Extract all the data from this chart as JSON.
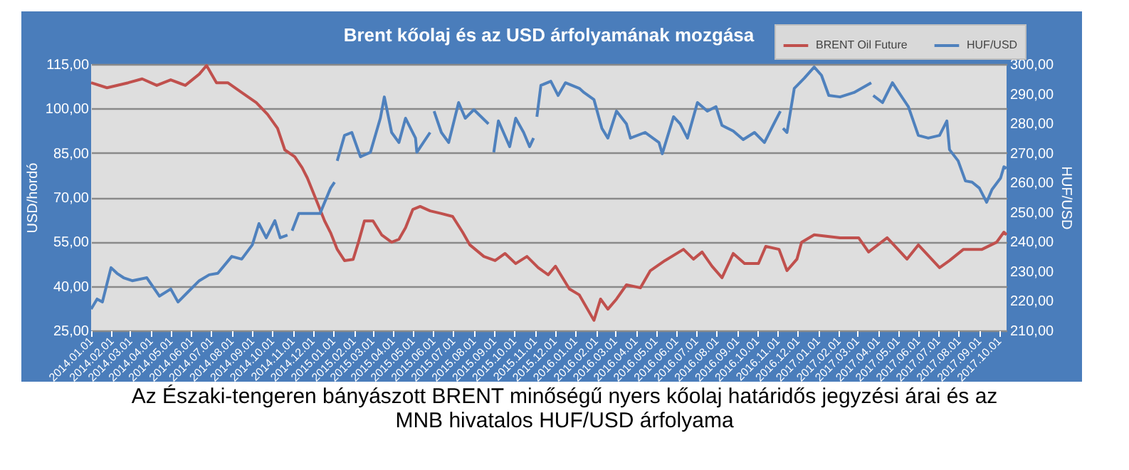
{
  "chart_data": {
    "type": "line",
    "title": "Brent kőolaj és az USD árfolyamának mozgása",
    "ylabel": "USD/hordó",
    "y2label": "HUF/USD",
    "annotations": [
      "Az Északi-tengeren bányászott BRENT minőségű nyers kőolaj határidős jegyzési árai és az MNB hivatalos HUF/USD árfolyama"
    ],
    "legend": "top right",
    "grid": "y",
    "xlim": [
      "2014-01-01",
      "2017-10-12"
    ],
    "xticks": [
      {
        "value": "2014-01-01",
        "label": "2014.01.01"
      },
      {
        "value": "2014-02-01",
        "label": "2014.02.01"
      },
      {
        "value": "2014-03-01",
        "label": "2014.03.01"
      },
      {
        "value": "2014-04-01",
        "label": "2014.04.01"
      },
      {
        "value": "2014-05-01",
        "label": "2014.05.01"
      },
      {
        "value": "2014-06-01",
        "label": "2014.06.01"
      },
      {
        "value": "2014-07-01",
        "label": "2014.07.01"
      },
      {
        "value": "2014-08-01",
        "label": "2014.08.01"
      },
      {
        "value": "2014-09-01",
        "label": "2014.09.01"
      },
      {
        "value": "2014-10-01",
        "label": "2014.10.01"
      },
      {
        "value": "2014-11-01",
        "label": "2014.11.01"
      },
      {
        "value": "2014-12-01",
        "label": "2014.12.01"
      },
      {
        "value": "2015-01-01",
        "label": "2015.01.01"
      },
      {
        "value": "2015-02-01",
        "label": "2015.02.01"
      },
      {
        "value": "2015-03-01",
        "label": "2015.03.01"
      },
      {
        "value": "2015-04-01",
        "label": "2015.04.01"
      },
      {
        "value": "2015-05-01",
        "label": "2015.05.01"
      },
      {
        "value": "2015-06-01",
        "label": "2015.06.01"
      },
      {
        "value": "2015-07-01",
        "label": "2015.07.01"
      },
      {
        "value": "2015-08-01",
        "label": "2015.08.01"
      },
      {
        "value": "2015-09-01",
        "label": "2015.09.01"
      },
      {
        "value": "2015-10-01",
        "label": "2015.10.01"
      },
      {
        "value": "2015-11-01",
        "label": "2015.11.01"
      },
      {
        "value": "2015-12-01",
        "label": "2015.12.01"
      },
      {
        "value": "2016-01-01",
        "label": "2016.01.01"
      },
      {
        "value": "2016-02-01",
        "label": "2016.02.01"
      },
      {
        "value": "2016-03-01",
        "label": "2016.03.01"
      },
      {
        "value": "2016-04-01",
        "label": "2016.04.01"
      },
      {
        "value": "2016-05-01",
        "label": "2016.05.01"
      },
      {
        "value": "2016-06-01",
        "label": "2016.06.01"
      },
      {
        "value": "2016-07-01",
        "label": "2016.07.01"
      },
      {
        "value": "2016-08-01",
        "label": "2016.08.01"
      },
      {
        "value": "2016-09-01",
        "label": "2016.09.01"
      },
      {
        "value": "2016-10-01",
        "label": "2016.10.01"
      },
      {
        "value": "2016-11-01",
        "label": "2016.11.01"
      },
      {
        "value": "2016-12-01",
        "label": "2016.12.01"
      },
      {
        "value": "2017-01-01",
        "label": "2017.01.01"
      },
      {
        "value": "2017-02-01",
        "label": "2017.02.01"
      },
      {
        "value": "2017-03-01",
        "label": "2017.03.01"
      },
      {
        "value": "2017-04-01",
        "label": "2017.04.01"
      },
      {
        "value": "2017-05-01",
        "label": "2017.05.01"
      },
      {
        "value": "2017-06-01",
        "label": "2017.06.01"
      },
      {
        "value": "2017-07-01",
        "label": "2017.07.01"
      },
      {
        "value": "2017-08-01",
        "label": "2017.08.01"
      },
      {
        "value": "2017-09-01",
        "label": "2017.09.01"
      },
      {
        "value": "2017-10-01",
        "label": "2017.10.01"
      }
    ],
    "ylim": [
      25,
      115
    ],
    "yticks": [
      {
        "value": 25,
        "label": "25,00"
      },
      {
        "value": 40,
        "label": "40,00"
      },
      {
        "value": 55,
        "label": "55,00"
      },
      {
        "value": 70,
        "label": "70,00"
      },
      {
        "value": 85,
        "label": "85,00"
      },
      {
        "value": 100,
        "label": "100,00"
      },
      {
        "value": 115,
        "label": "115,00"
      }
    ],
    "y2lim": [
      210,
      300
    ],
    "y2ticks": [
      {
        "value": 210,
        "label": "210,00"
      },
      {
        "value": 220,
        "label": "220,00"
      },
      {
        "value": 230,
        "label": "230,00"
      },
      {
        "value": 240,
        "label": "240,00"
      },
      {
        "value": 250,
        "label": "250,00"
      },
      {
        "value": 260,
        "label": "260,00"
      },
      {
        "value": 270,
        "label": "270,00"
      },
      {
        "value": 280,
        "label": "280,00"
      },
      {
        "value": 290,
        "label": "290,00"
      },
      {
        "value": 300,
        "label": "300,00"
      }
    ],
    "series": [
      {
        "name": "BRENT Oil Future",
        "color": "#c0504d",
        "x": [
          "2014-01-01",
          "2014-01-25",
          "2014-02-26",
          "2014-03-19",
          "2014-04-10",
          "2014-05-01",
          "2014-05-23",
          "2014-06-13",
          "2014-06-24",
          "2014-07-09",
          "2014-07-26",
          "2014-08-16",
          "2014-09-07",
          "2014-09-24",
          "2014-10-09",
          "2014-10-20",
          "2014-11-04",
          "2014-11-15",
          "2014-11-23",
          "2014-12-06",
          "2014-12-19",
          "2014-12-28",
          "2015-01-07",
          "2015-01-18",
          "2015-01-31",
          "2015-02-08",
          "2015-02-17",
          "2015-03-02",
          "2015-03-15",
          "2015-03-30",
          "2015-04-10",
          "2015-04-20",
          "2015-05-01",
          "2015-05-12",
          "2015-05-27",
          "2015-06-13",
          "2015-06-30",
          "2015-07-15",
          "2015-07-26",
          "2015-08-16",
          "2015-09-02",
          "2015-09-17",
          "2015-10-03",
          "2015-10-20",
          "2015-11-06",
          "2015-11-21",
          "2015-12-02",
          "2015-12-23",
          "2016-01-07",
          "2016-01-29",
          "2016-02-08",
          "2016-02-19",
          "2016-03-03",
          "2016-03-18",
          "2016-04-08",
          "2016-04-23",
          "2016-05-15",
          "2016-06-12",
          "2016-06-27",
          "2016-07-10",
          "2016-07-25",
          "2016-08-09",
          "2016-08-26",
          "2016-09-12",
          "2016-10-03",
          "2016-10-14",
          "2016-11-03",
          "2016-11-15",
          "2016-11-30",
          "2016-12-07",
          "2016-12-26",
          "2017-02-03",
          "2017-03-03",
          "2017-03-18",
          "2017-04-15",
          "2017-05-15",
          "2017-06-01",
          "2017-07-03",
          "2017-07-18",
          "2017-08-08",
          "2017-09-05",
          "2017-09-27",
          "2017-10-08",
          "2017-10-12"
        ],
        "values": [
          108.7,
          107.0,
          108.7,
          110.0,
          107.8,
          109.7,
          107.8,
          111.6,
          114.5,
          108.7,
          108.7,
          105.4,
          102.0,
          98.0,
          93.3,
          86.0,
          83.7,
          80.0,
          76.5,
          69.3,
          62.0,
          58.0,
          52.4,
          48.6,
          49.0,
          54.8,
          62.0,
          62.0,
          57.3,
          54.8,
          55.8,
          59.7,
          65.9,
          66.9,
          65.4,
          64.5,
          63.5,
          58.2,
          53.9,
          50.0,
          48.6,
          51.0,
          47.6,
          50.0,
          46.2,
          43.8,
          46.7,
          39.0,
          37.0,
          28.4,
          35.6,
          32.2,
          35.6,
          40.4,
          39.4,
          45.2,
          48.6,
          52.4,
          49.1,
          51.5,
          46.7,
          42.8,
          51.0,
          47.6,
          47.6,
          53.4,
          52.4,
          45.2,
          49.1,
          54.8,
          57.3,
          56.3,
          56.3,
          51.5,
          56.3,
          49.1,
          53.9,
          46.2,
          48.6,
          52.4,
          52.4,
          54.8,
          58.2,
          57.3
        ]
      },
      {
        "name": "HUF/USD",
        "color": "#4f81bd",
        "axis": "y2",
        "x": [
          "2014-01-01",
          "2014-01-10",
          "2014-01-18",
          "2014-01-31",
          "2014-02-09",
          "2014-02-19",
          "2014-03-04",
          "2014-03-26",
          "2014-04-14",
          "2014-05-01",
          "2014-05-12",
          "2014-05-27",
          "2014-06-13",
          "2014-06-28",
          "2014-07-11",
          "2014-08-01",
          "2014-08-16",
          "2014-09-01",
          "2014-09-11",
          "2014-09-22",
          "2014-10-05",
          "2014-10-13",
          "2014-10-24",
          "2014-10-27",
          "2014-10-31",
          "2014-11-10",
          "2014-11-24",
          "2014-12-12",
          "2014-12-28",
          "2015-01-03",
          "2015-01-05",
          "2015-01-07",
          "2015-01-18",
          "2015-01-29",
          "2015-02-11",
          "2015-02-26",
          "2015-03-13",
          "2015-03-19",
          "2015-03-30",
          "2015-04-10",
          "2015-04-20",
          "2015-05-05",
          "2015-05-07",
          "2015-05-27",
          "2015-05-29",
          "2015-06-02",
          "2015-06-13",
          "2015-06-24",
          "2015-07-09",
          "2015-07-19",
          "2015-08-01",
          "2015-08-23",
          "2015-08-25",
          "2015-08-31",
          "2015-09-07",
          "2015-09-24",
          "2015-10-03",
          "2015-10-15",
          "2015-10-24",
          "2015-10-30",
          "2015-11-01",
          "2015-11-04",
          "2015-11-10",
          "2015-11-25",
          "2015-12-06",
          "2015-12-17",
          "2016-01-07",
          "2016-01-14",
          "2016-01-29",
          "2016-02-10",
          "2016-02-19",
          "2016-03-03",
          "2016-03-18",
          "2016-03-24",
          "2016-04-15",
          "2016-05-06",
          "2016-05-11",
          "2016-05-28",
          "2016-06-07",
          "2016-06-18",
          "2016-07-03",
          "2016-07-18",
          "2016-07-31",
          "2016-08-09",
          "2016-08-26",
          "2016-09-10",
          "2016-09-27",
          "2016-10-12",
          "2016-10-25",
          "2016-11-05",
          "2016-11-06",
          "2016-11-09",
          "2016-11-15",
          "2016-11-26",
          "2016-12-11",
          "2016-12-26",
          "2017-01-06",
          "2017-01-17",
          "2017-02-03",
          "2017-02-24",
          "2017-03-22",
          "2017-03-23",
          "2017-03-25",
          "2017-04-08",
          "2017-04-23",
          "2017-04-30",
          "2017-05-17",
          "2017-06-01",
          "2017-06-16",
          "2017-07-03",
          "2017-07-14",
          "2017-07-18",
          "2017-07-31",
          "2017-08-11",
          "2017-08-21",
          "2017-09-01",
          "2017-09-12",
          "2017-09-20",
          "2017-10-03",
          "2017-10-08",
          "2017-10-12"
        ],
        "values": [
          217.2,
          220.6,
          219.6,
          231.2,
          229.3,
          227.8,
          226.8,
          227.8,
          221.6,
          224.0,
          219.6,
          223.0,
          226.8,
          228.8,
          229.3,
          235.0,
          234.1,
          238.9,
          246.1,
          241.3,
          247.1,
          241.3,
          242.2,
          null,
          243.7,
          249.5,
          249.5,
          249.5,
          258.1,
          260.1,
          null,
          267.3,
          275.9,
          276.9,
          268.7,
          270.2,
          281.7,
          288.9,
          276.9,
          273.5,
          281.7,
          275.0,
          270.2,
          276.9,
          null,
          284.1,
          276.9,
          273.5,
          287.0,
          281.7,
          284.6,
          279.8,
          null,
          270.2,
          280.8,
          272.1,
          281.7,
          276.9,
          272.1,
          275.0,
          null,
          282.2,
          292.8,
          294.2,
          289.4,
          293.7,
          291.8,
          290.4,
          288.0,
          278.3,
          275.0,
          284.1,
          279.8,
          275.0,
          276.9,
          273.5,
          269.7,
          282.2,
          279.8,
          275.0,
          287.0,
          284.1,
          285.6,
          279.3,
          277.4,
          274.5,
          276.9,
          273.5,
          279.3,
          284.1,
          null,
          278.3,
          276.9,
          291.8,
          295.2,
          299.0,
          296.2,
          289.4,
          288.9,
          290.4,
          293.7,
          null,
          289.4,
          287.0,
          293.7,
          291.3,
          285.6,
          275.9,
          275.0,
          275.9,
          280.8,
          271.1,
          267.3,
          260.5,
          260.1,
          258.1,
          253.3,
          257.6,
          261.5,
          265.3,
          264.8
        ]
      }
    ]
  }
}
